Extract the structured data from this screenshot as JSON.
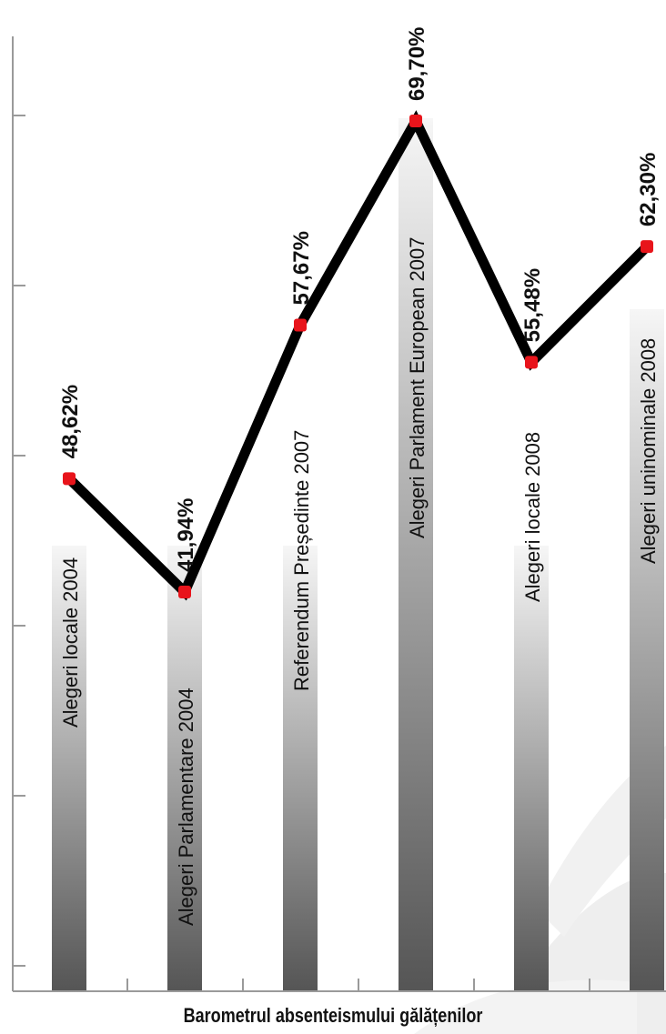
{
  "chart_data": {
    "type": "line",
    "title": "Barometrul absenteismului gălățenilor",
    "categories": [
      "Alegeri locale 2004",
      "Alegeri Parlamentare 2004",
      "Referendum Președinte 2007",
      "Alegeri Parlament European 2007",
      "Alegeri locale 2008",
      "Alegeri uninominale 2008"
    ],
    "values": [
      48.62,
      41.94,
      57.67,
      69.7,
      55.48,
      62.3
    ],
    "data_labels": [
      "48,62%",
      "41,94%",
      "57,67%",
      "69,70%",
      "55,48%",
      "62,30%"
    ],
    "xlabel": "",
    "ylabel": "",
    "ylim": [
      20,
      70
    ],
    "tick_labels": false,
    "grid": false,
    "legend": "none",
    "colors": {
      "line": "#000000",
      "marker": "#e8141b",
      "column_light": "#f4f4f4",
      "column_dark": "#555555",
      "axis": "#9a9a9a",
      "watermark": "#ececec"
    }
  }
}
